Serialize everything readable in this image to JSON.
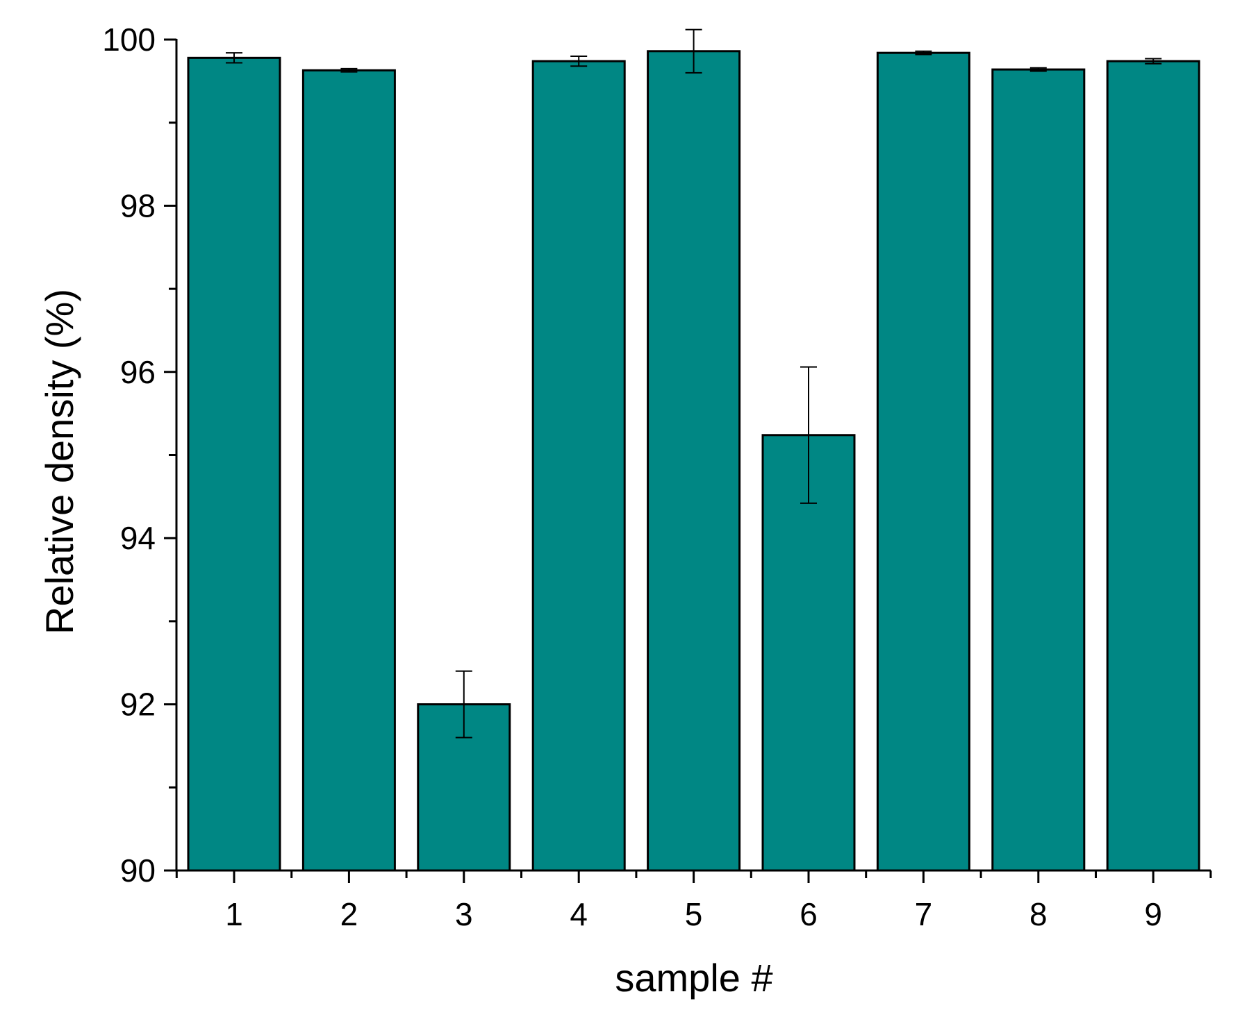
{
  "chart_data": {
    "type": "bar",
    "title": "",
    "xlabel": "sample #",
    "ylabel": "Relative density (%)",
    "categories": [
      "1",
      "2",
      "3",
      "4",
      "5",
      "6",
      "7",
      "8",
      "9"
    ],
    "values": [
      99.78,
      99.63,
      92.0,
      99.74,
      99.86,
      95.24,
      99.84,
      99.64,
      99.74
    ],
    "errors": [
      0.06,
      0.02,
      0.4,
      0.06,
      0.26,
      0.82,
      0.02,
      0.02,
      0.03
    ],
    "ylim": [
      90,
      100
    ],
    "yticks": [
      "90",
      "92",
      "94",
      "96",
      "98",
      "100"
    ],
    "grid": false,
    "legend": "none",
    "bar_color": "#008784",
    "edge_color": "#000000"
  }
}
